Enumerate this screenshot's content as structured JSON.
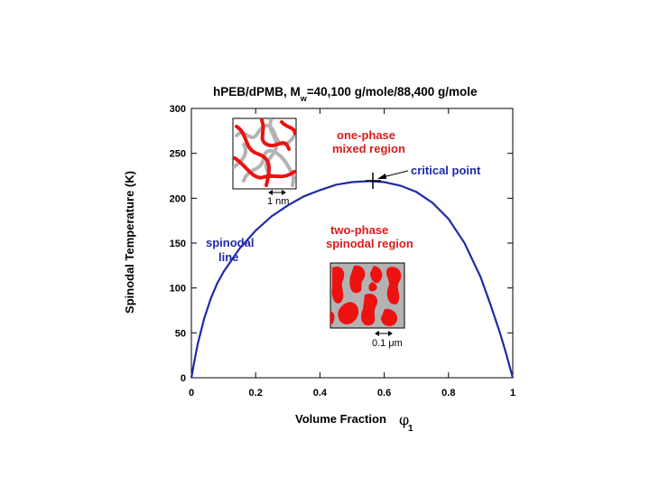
{
  "chart_data": {
    "type": "line",
    "title_main": "h",
    "title_parts": {
      "prefix": "hPEB/dPMB, M",
      "subscript": "w",
      "suffix": "=40,100 g/mole/88,400 g/mole"
    },
    "xlabel": "Volume Fraction",
    "xlabel_symbol": "φ",
    "xlabel_subscript": "1",
    "ylabel": "Spinodal Temperature (K)",
    "xlim": [
      0,
      1
    ],
    "ylim": [
      0,
      300
    ],
    "x_ticks": [
      "0",
      "0.2",
      "0.4",
      "0.6",
      "0.8",
      "1"
    ],
    "y_ticks": [
      "0",
      "50",
      "100",
      "150",
      "200",
      "250",
      "300"
    ],
    "series": [
      {
        "color": "#1f2aa8",
        "x": [
          0.0,
          0.01,
          0.02,
          0.04,
          0.06,
          0.08,
          0.1,
          0.15,
          0.2,
          0.25,
          0.3,
          0.35,
          0.4,
          0.45,
          0.5,
          0.55,
          0.56,
          0.6,
          0.65,
          0.7,
          0.75,
          0.8,
          0.85,
          0.9,
          0.93,
          0.96,
          0.98,
          0.99,
          1.0
        ],
        "y": [
          0,
          20,
          38,
          66,
          88,
          105,
          118,
          144,
          164,
          180,
          192,
          202,
          209,
          215,
          218,
          219,
          219,
          218,
          214,
          207,
          195,
          177,
          150,
          112,
          82,
          50,
          26,
          13,
          0
        ]
      }
    ],
    "critical_point": {
      "x": 0.56,
      "y": 219
    },
    "annotations": {
      "one_phase_1": "one-phase",
      "one_phase_2": "mixed region",
      "critical_point": "critical point",
      "two_phase_1": "two-phase",
      "two_phase_2": "spinodal region",
      "spinodal_1": "spinodal",
      "spinodal_2": "line",
      "scale_nm": "1 nm",
      "scale_um": "0.1 μm"
    },
    "colors": {
      "curve": "#1f2aa8",
      "annotation_red": "#dd1a1a",
      "annotation_blue": "#1f2aa8",
      "inset_red": "#ee1111",
      "inset_gray": "#b3b3b3"
    },
    "grid": false
  }
}
